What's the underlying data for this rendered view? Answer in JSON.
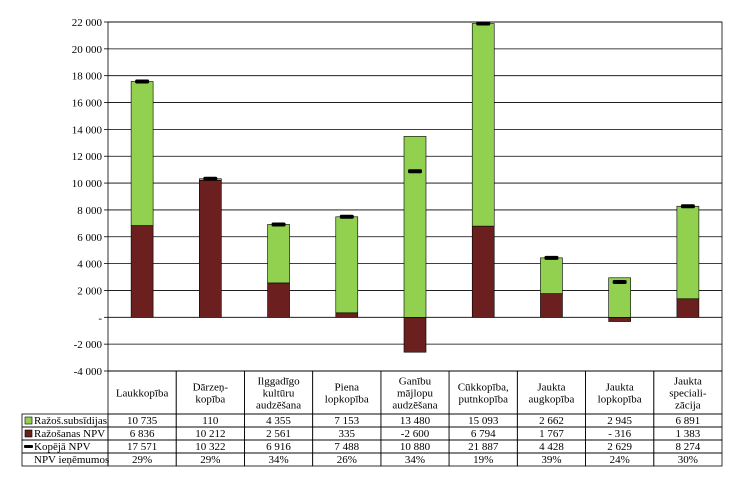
{
  "chart_data": {
    "type": "bar",
    "stacked": true,
    "categories": [
      [
        "Laukkopība"
      ],
      [
        "Dārzeņ-",
        "kopība"
      ],
      [
        "Ilggadīgo",
        "kultūru",
        "audzēšana"
      ],
      [
        "Piena",
        "lopkopība"
      ],
      [
        "Ganību",
        "mājlopu",
        "audzēšana"
      ],
      [
        "Cūkkopība,",
        "putnkopība"
      ],
      [
        "Jaukta",
        "augkopība"
      ],
      [
        "Jaukta",
        "lopkopība"
      ],
      [
        "Jaukta",
        "speciali-",
        "zācija"
      ]
    ],
    "ylim": [
      -4000,
      22000
    ],
    "yticks": [
      -4000,
      -2000,
      0,
      2000,
      4000,
      6000,
      8000,
      10000,
      12000,
      14000,
      16000,
      18000,
      20000,
      22000
    ],
    "ytick_labels": [
      "-4 000",
      "-2 000",
      "-",
      "2 000",
      "4 000",
      "6 000",
      "8 000",
      "10 000",
      "12 000",
      "14 000",
      "16 000",
      "18 000",
      "20 000",
      "22 000"
    ],
    "grid": true,
    "series": [
      {
        "name": "Ražoš.subsīdijas",
        "kind": "bar",
        "color": "#92d050",
        "values": [
          10735,
          110,
          4355,
          7153,
          13480,
          15093,
          2662,
          2945,
          6891
        ],
        "labels": [
          "10 735",
          "110",
          "4 355",
          "7 153",
          "13 480",
          "15 093",
          "2 662",
          "2 945",
          "6 891"
        ]
      },
      {
        "name": "Ražošanas NPV",
        "kind": "bar",
        "color": "#6b1f1f",
        "values": [
          6836,
          10212,
          2561,
          335,
          -2600,
          6794,
          1767,
          -316,
          1383
        ],
        "labels": [
          "6 836",
          "10 212",
          "2 561",
          "335",
          "-2 600",
          "6 794",
          "1 767",
          "- 316",
          "1 383"
        ]
      },
      {
        "name": "Kopējā NPV",
        "kind": "marker",
        "color": "#000000",
        "values": [
          17571,
          10322,
          6916,
          7488,
          10880,
          21887,
          4428,
          2629,
          8274
        ],
        "labels": [
          "17 571",
          "10 322",
          "6 916",
          "7 488",
          "10 880",
          "21 887",
          "4 428",
          "2 629",
          "8 274"
        ]
      },
      {
        "name": "NPV ieņēmumos",
        "kind": "table-only",
        "labels": [
          "29%",
          "29%",
          "34%",
          "26%",
          "34%",
          "19%",
          "39%",
          "24%",
          "30%"
        ]
      }
    ]
  }
}
